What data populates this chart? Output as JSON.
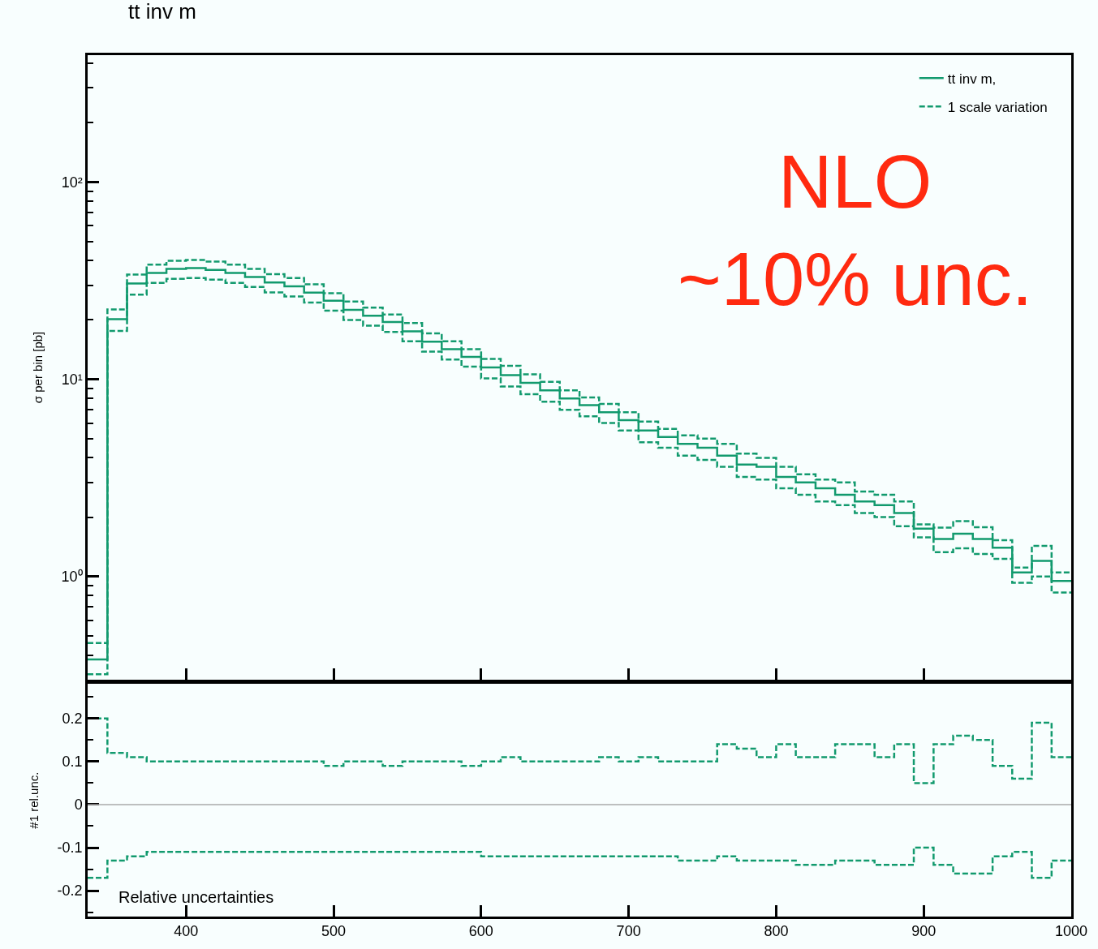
{
  "chart_data": [
    {
      "type": "step",
      "title": "tt inv m",
      "ylabel": "σ per bin [pb]",
      "log": "y",
      "grid": false,
      "legend": "top right",
      "tick_labels": "y",
      "marker": "none",
      "x": [
        333.3,
        346.7,
        360,
        373.3,
        386.7,
        400,
        413.3,
        426.7,
        440,
        453.3,
        466.7,
        480,
        493.3,
        506.7,
        520,
        533.3,
        546.7,
        560,
        573.3,
        586.7,
        600,
        613.3,
        626.7,
        640,
        653.3,
        666.7,
        680,
        693.3,
        706.7,
        720,
        733.3,
        746.7,
        760,
        773.3,
        786.7,
        800,
        813.3,
        826.7,
        840,
        853.3,
        866.7,
        880,
        893.3,
        906.7,
        920,
        933.3,
        946.7,
        960,
        973.3,
        986.7,
        1000
      ],
      "xlim": [
        333.3,
        1000
      ],
      "xticks": [
        400,
        500,
        600,
        700,
        800,
        900,
        1000
      ],
      "ylim": [
        0.3,
        440
      ],
      "yticks": [
        {
          "value": 1,
          "label": "10⁰"
        },
        {
          "value": 10,
          "label": "10¹"
        },
        {
          "value": 100,
          "label": "10²"
        }
      ],
      "series": [
        {
          "name": "tt inv m,",
          "color": "#129a6e",
          "line_style": "solid",
          "values": [
            0.38,
            20.2,
            30.6,
            34.6,
            36.3,
            36.6,
            35.9,
            34.6,
            33,
            31,
            29.6,
            27.5,
            25,
            22.5,
            21,
            19.5,
            17.5,
            15.5,
            14.2,
            13,
            11.5,
            10.5,
            9.6,
            8.8,
            8.0,
            7.4,
            6.8,
            6.2,
            5.5,
            5.1,
            4.7,
            4.5,
            4.1,
            3.7,
            3.6,
            3.2,
            3.0,
            2.8,
            2.6,
            2.4,
            2.3,
            2.1,
            1.75,
            1.55,
            1.65,
            1.55,
            1.4,
            1.05,
            1.2,
            0.95,
            0.95
          ]
        },
        {
          "name": "1 scale variation",
          "color": "#129a6e",
          "line_style": "dashed",
          "values": [
            0.46,
            22.6,
            34.0,
            38.1,
            39.9,
            40.3,
            39.5,
            38.1,
            36.3,
            34.1,
            32.6,
            30.3,
            27.3,
            24.8,
            23.1,
            21.3,
            19.3,
            17.1,
            15.6,
            14.2,
            12.7,
            11.7,
            10.6,
            9.7,
            8.8,
            8.1,
            7.5,
            6.8,
            6.1,
            5.6,
            5.2,
            5.0,
            4.7,
            4.2,
            4.0,
            3.6,
            3.3,
            3.1,
            3.0,
            2.7,
            2.6,
            2.4,
            1.84,
            1.77,
            1.91,
            1.78,
            1.53,
            1.11,
            1.43,
            1.05,
            1.05
          ]
        },
        {
          "color": "#129a6e",
          "line_style": "dashed",
          "values": [
            0.32,
            17.6,
            26.9,
            30.8,
            32.3,
            32.6,
            32.0,
            30.8,
            29.4,
            27.6,
            26.3,
            24.5,
            22.3,
            20.0,
            18.7,
            17.4,
            15.6,
            13.8,
            12.6,
            11.6,
            10.1,
            9.2,
            8.4,
            7.7,
            7.0,
            6.5,
            6.0,
            5.5,
            4.8,
            4.5,
            4.1,
            3.9,
            3.6,
            3.2,
            3.1,
            2.8,
            2.6,
            2.4,
            2.3,
            2.1,
            2.0,
            1.8,
            1.58,
            1.33,
            1.39,
            1.3,
            1.23,
            0.93,
            1.0,
            0.83,
            0.83
          ]
        }
      ],
      "annotations": [
        "NLO\n~10% unc."
      ]
    },
    {
      "type": "step",
      "ylabel": "#1 rel.unc.",
      "grid": false,
      "marker": "none",
      "x": [
        333.3,
        346.7,
        360,
        373.3,
        386.7,
        400,
        413.3,
        426.7,
        440,
        453.3,
        466.7,
        480,
        493.3,
        506.7,
        520,
        533.3,
        546.7,
        560,
        573.3,
        586.7,
        600,
        613.3,
        626.7,
        640,
        653.3,
        666.7,
        680,
        693.3,
        706.7,
        720,
        733.3,
        746.7,
        760,
        773.3,
        786.7,
        800,
        813.3,
        826.7,
        840,
        853.3,
        866.7,
        880,
        893.3,
        906.7,
        920,
        933.3,
        946.7,
        960,
        973.3,
        986.7,
        1000
      ],
      "xlim": [
        333.3,
        1000
      ],
      "xticks": [
        400,
        500,
        600,
        700,
        800,
        900,
        1000
      ],
      "ylim": [
        -0.26,
        0.28
      ],
      "yticks": [
        {
          "value": -0.2,
          "label": "-0.2"
        },
        {
          "value": -0.1,
          "label": "-0.1"
        },
        0,
        0.1,
        0.2
      ],
      "ref_lines": [
        {
          "axis": "y",
          "value": 0,
          "color": "#aaaaaa"
        }
      ],
      "series": [
        {
          "color": "#129a6e",
          "line_style": "dashed",
          "values": [
            0.2,
            0.12,
            0.11,
            0.1,
            0.1,
            0.1,
            0.1,
            0.1,
            0.1,
            0.1,
            0.1,
            0.1,
            0.09,
            0.1,
            0.1,
            0.09,
            0.1,
            0.1,
            0.1,
            0.09,
            0.1,
            0.11,
            0.1,
            0.1,
            0.1,
            0.1,
            0.11,
            0.1,
            0.11,
            0.1,
            0.1,
            0.1,
            0.14,
            0.13,
            0.11,
            0.14,
            0.11,
            0.11,
            0.14,
            0.14,
            0.11,
            0.14,
            0.05,
            0.14,
            0.16,
            0.15,
            0.09,
            0.06,
            0.19,
            0.11,
            0.11
          ]
        },
        {
          "color": "#129a6e",
          "line_style": "dashed",
          "values": [
            -0.17,
            -0.13,
            -0.12,
            -0.11,
            -0.11,
            -0.11,
            -0.11,
            -0.11,
            -0.11,
            -0.11,
            -0.11,
            -0.11,
            -0.11,
            -0.11,
            -0.11,
            -0.11,
            -0.11,
            -0.11,
            -0.11,
            -0.11,
            -0.12,
            -0.12,
            -0.12,
            -0.12,
            -0.12,
            -0.12,
            -0.12,
            -0.12,
            -0.12,
            -0.12,
            -0.13,
            -0.13,
            -0.12,
            -0.13,
            -0.13,
            -0.13,
            -0.14,
            -0.14,
            -0.13,
            -0.13,
            -0.14,
            -0.14,
            -0.1,
            -0.14,
            -0.16,
            -0.16,
            -0.12,
            -0.11,
            -0.17,
            -0.13,
            -0.13
          ]
        }
      ],
      "annotations": [
        "Relative uncertainties"
      ]
    }
  ]
}
